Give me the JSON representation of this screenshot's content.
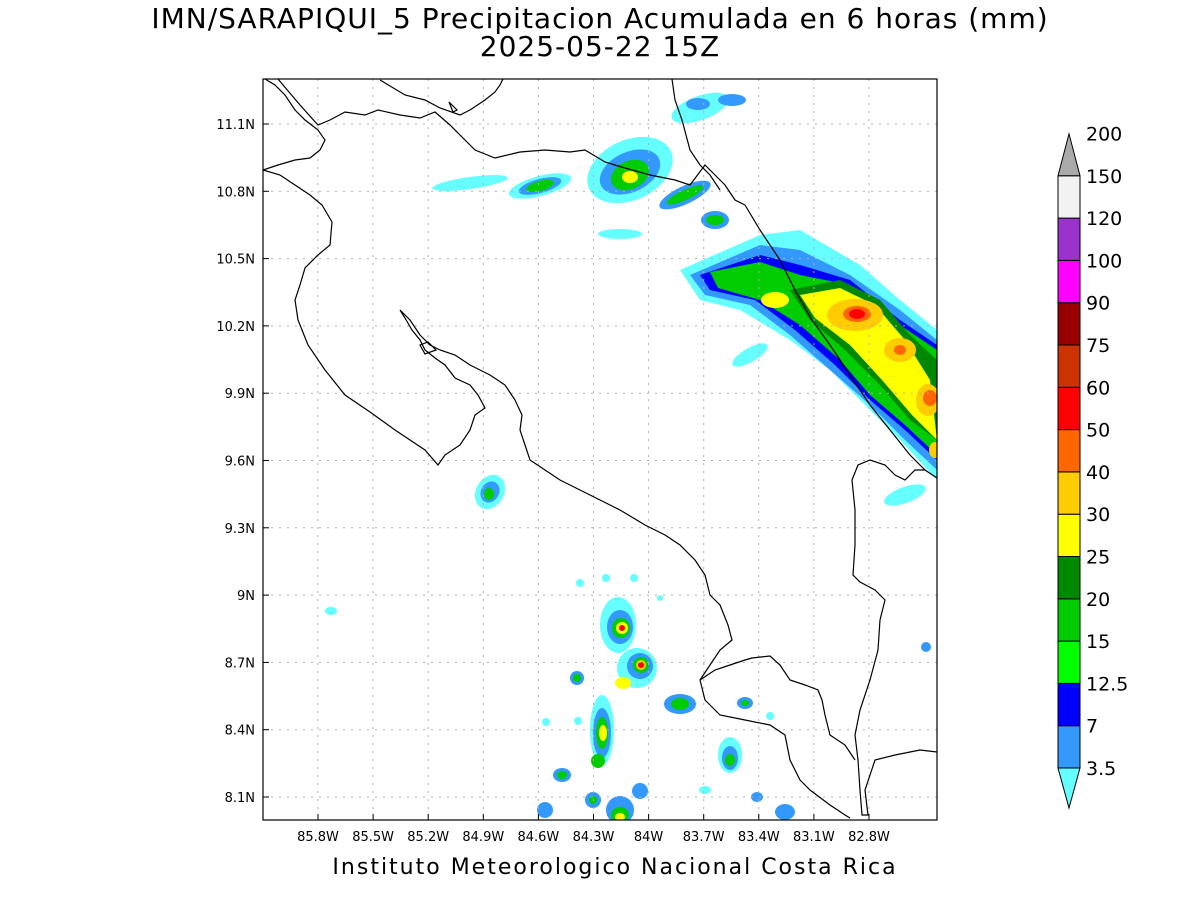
{
  "title": {
    "line1": "IMN/SARAPIQUI_5 Precipitacion Acumulada en 6 horas (mm)",
    "line2": "2025-05-22 15Z"
  },
  "footer": "Instituto Meteorologico Nacional Costa Rica",
  "axes": {
    "lon_labels": [
      "85.8W",
      "85.5W",
      "85.2W",
      "84.9W",
      "84.6W",
      "84.3W",
      "84W",
      "83.7W",
      "83.4W",
      "83.1W",
      "82.8W"
    ],
    "lat_labels": [
      "11.1N",
      "10.8N",
      "10.5N",
      "10.2N",
      "9.9N",
      "9.6N",
      "9.3N",
      "9N",
      "8.7N",
      "8.4N",
      "8.1N"
    ],
    "grid": "dotted"
  },
  "colorbar": {
    "labels": [
      "3.5",
      "7",
      "12.5",
      "15",
      "20",
      "25",
      "30",
      "40",
      "50",
      "60",
      "75",
      "90",
      "100",
      "120",
      "150",
      "200"
    ],
    "colors": [
      "#66ffff",
      "#3399ff",
      "#0000ff",
      "#00ff00",
      "#00cc00",
      "#008800",
      "#ffff00",
      "#ffcc00",
      "#ff6600",
      "#ff0000",
      "#cc3300",
      "#990000",
      "#ff00ff",
      "#9933cc",
      "#f2f2f2",
      "#aaaaaa"
    ]
  },
  "chart_data": {
    "type": "heatmap",
    "title": "IMN/SARAPIQUI_5 Precipitacion Acumulada en 6 horas (mm)",
    "subtitle": "2025-05-22 15Z",
    "units": "mm",
    "x_ticks": [
      "85.8W",
      "85.5W",
      "85.2W",
      "84.9W",
      "84.6W",
      "84.3W",
      "84W",
      "83.7W",
      "83.4W",
      "83.1W",
      "82.8W"
    ],
    "y_ticks": [
      "11.1N",
      "10.8N",
      "10.5N",
      "10.2N",
      "9.9N",
      "9.6N",
      "9.3N",
      "9N",
      "8.7N",
      "8.4N",
      "8.1N"
    ],
    "levels": [
      3.5,
      7,
      12.5,
      15,
      20,
      25,
      30,
      40,
      50,
      60,
      75,
      90,
      100,
      120,
      150,
      200
    ]
  }
}
